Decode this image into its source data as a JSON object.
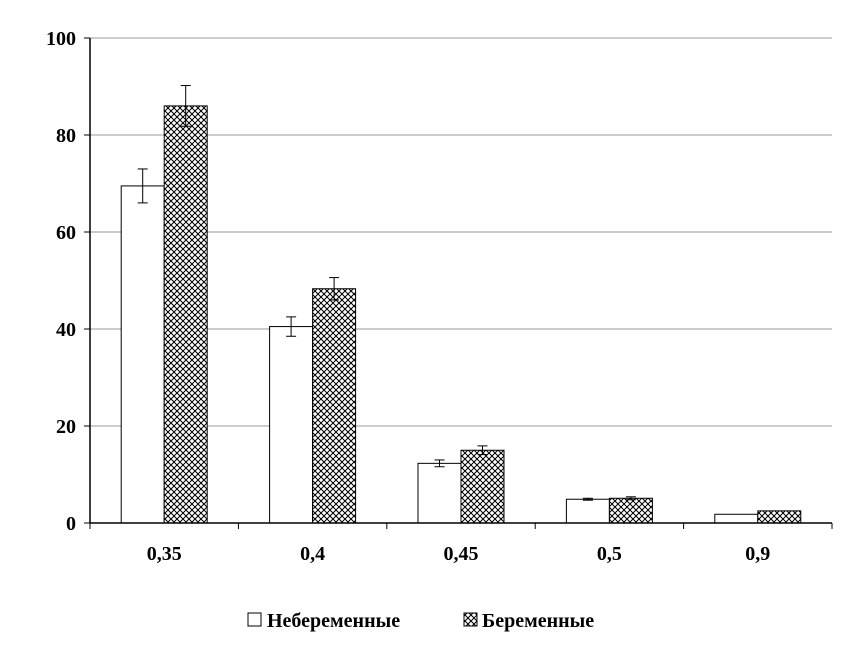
{
  "chart_data": {
    "type": "bar",
    "title": "",
    "xlabel": "",
    "ylabel": "",
    "categories": [
      "0,35",
      "0,4",
      "0,45",
      "0,5",
      "0,9"
    ],
    "ylim": [
      0,
      100
    ],
    "yticks": [
      "0",
      "20",
      "40",
      "60",
      "80",
      "100"
    ],
    "grid": "horizontal",
    "legend_position": "bottom",
    "series": [
      {
        "name": "Небеременные",
        "values": [
          69.5,
          40.5,
          12.3,
          4.9,
          1.8
        ],
        "errors": [
          3.5,
          2.0,
          0.7,
          0.2,
          0
        ],
        "fill": "#ffffff",
        "pattern": "none"
      },
      {
        "name": "Беременные",
        "values": [
          86,
          48.3,
          15,
          5.1,
          2.5
        ],
        "errors": [
          4.2,
          2.3,
          0.9,
          0.3,
          0
        ],
        "fill": "#ffffff",
        "pattern": "crosshatch"
      }
    ],
    "colors": {
      "bar_stroke": "#000000",
      "grid": "#999999",
      "axis": "#000000"
    }
  }
}
